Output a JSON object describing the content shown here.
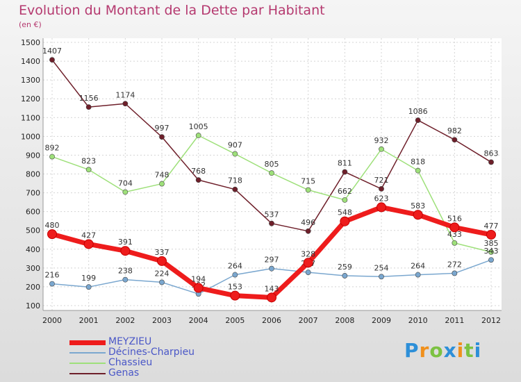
{
  "chart_data": {
    "type": "line",
    "title": "Evolution du Montant de la Dette par Habitant",
    "subtitle": "(en €)",
    "xlabel": "",
    "ylabel": "",
    "ylim": [
      100,
      1500
    ],
    "yticks": [
      100,
      200,
      300,
      400,
      500,
      600,
      700,
      800,
      900,
      1000,
      1100,
      1200,
      1300,
      1400,
      1500
    ],
    "x": [
      "2000",
      "2001",
      "2002",
      "2003",
      "2004",
      "2005",
      "2006",
      "2007",
      "2008",
      "2009",
      "2010",
      "2011",
      "2012"
    ],
    "grid": true,
    "legend_position": "bottom-left",
    "series": [
      {
        "name": "Genas",
        "color": "#6e1f2a",
        "values": [
          1407,
          1156,
          1174,
          997,
          768,
          718,
          537,
          496,
          811,
          721,
          1086,
          982,
          863
        ]
      },
      {
        "name": "Chassieu",
        "color": "#9ee07a",
        "values": [
          892,
          823,
          704,
          748,
          1005,
          907,
          805,
          715,
          662,
          932,
          818,
          433,
          385
        ]
      },
      {
        "name": "Décines-Charpieu",
        "color": "#7aa7cf",
        "values": [
          216,
          199,
          238,
          224,
          162,
          264,
          297,
          277,
          259,
          254,
          264,
          272,
          343
        ]
      },
      {
        "name": "MEYZIEU",
        "color": "#ee1c1c",
        "values": [
          480,
          427,
          391,
          337,
          194,
          153,
          143,
          328,
          548,
          623,
          583,
          516,
          477
        ]
      }
    ],
    "legend_order": [
      "MEYZIEU",
      "Décines-Charpieu",
      "Chassieu",
      "Genas"
    ]
  },
  "logo": {
    "text": "Proxiti",
    "letter_colors": [
      "#2d8fd8",
      "#f0901c",
      "#7cc242",
      "#2d8fd8",
      "#f0901c",
      "#7cc242",
      "#2d8fd8"
    ]
  }
}
